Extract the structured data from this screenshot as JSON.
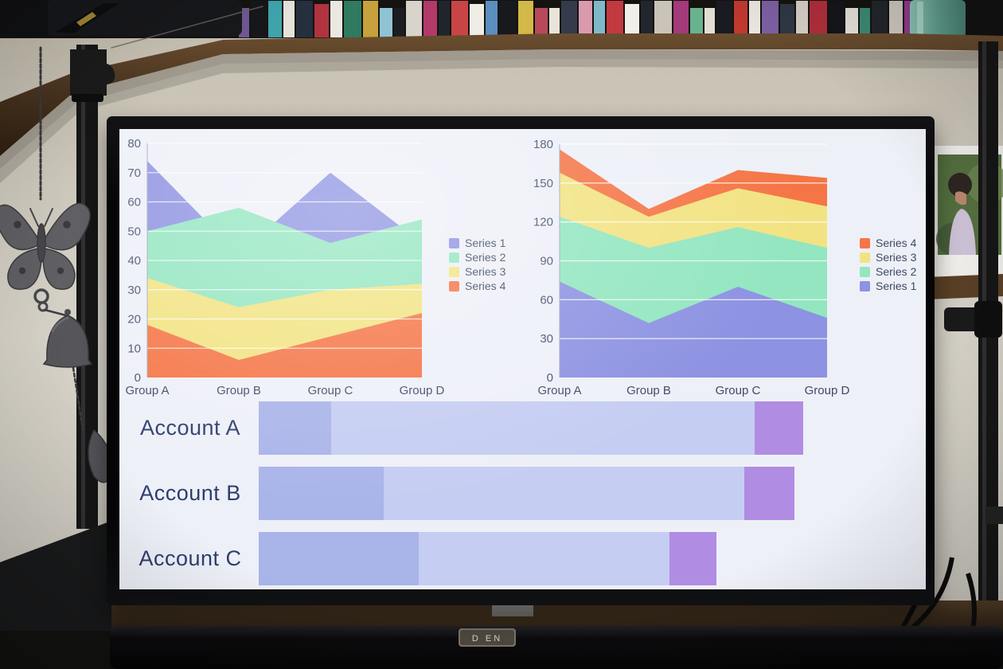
{
  "scene": {
    "wall_color": "#cfc8ba",
    "backdrop_dark": "#141310",
    "shelf": {
      "wood_color": "#4b3520",
      "edge_color": "#9b958a",
      "spines": [
        "#6f5794",
        "#15171b",
        "#3fa3ab",
        "#e6e3dc",
        "#262f3e",
        "#b03340",
        "#ebe8e2",
        "#2f7a60",
        "#c7a13b",
        "#8fc3d4",
        "#1b1d22",
        "#d8d4cc",
        "#b23a69",
        "#20242c",
        "#c94545",
        "#f0ede7",
        "#5a8fbf",
        "#18191d",
        "#d2b948",
        "#b8495a",
        "#e8e4da",
        "#343b4a",
        "#d99aae",
        "#7fb9c9",
        "#c23a3f",
        "#f2efe9",
        "#23262e",
        "#cac4b8",
        "#a43a7a",
        "#68b38e",
        "#e2ded4",
        "#191b20",
        "#c0392f",
        "#e9e6df",
        "#7c5fa2",
        "#2e3744",
        "#d4cfc6",
        "#ae2f3b",
        "#14161a",
        "#e5e2da",
        "#3d8a74",
        "#22252b",
        "#cdc8bf",
        "#913a8c",
        "#1d2026",
        "#dedacf"
      ]
    },
    "bag_color": "#17181b",
    "jar_color": "#6fae9f",
    "pipe_color": "#161617",
    "chime_metal_color": "#5f5f64",
    "tabletop_color": "#3a2b1d",
    "dark_corner_color": "#191a1b",
    "frame": {
      "matte_color": "#f2f0ec",
      "foliage_color": "#55703f",
      "hair_color": "#2e2622",
      "skin_color": "#b98a6e"
    },
    "soundbar": {
      "color": "#0b0b0d",
      "badge_color": "#7c7468",
      "badge_text": "D EN"
    }
  },
  "screen": {
    "background": "#eef0f8",
    "tick_color": "#44516d",
    "category_label_color": "#3e4a63",
    "account_label_color": "#2e3e6e",
    "gridline_color": "rgba(255,255,255,0.75)",
    "axis_color": "rgba(160,168,190,0.85)"
  },
  "chart_data": [
    {
      "id": "area-overlapping",
      "type": "area",
      "mode": "overlapping",
      "categories": [
        "Group A",
        "Group B",
        "Group C",
        "Group D"
      ],
      "series": [
        {
          "name": "Series 1",
          "color": "#8d92e2",
          "values": [
            74,
            42,
            70,
            46
          ]
        },
        {
          "name": "Series 2",
          "color": "#93e6c0",
          "values": [
            50,
            58,
            46,
            54
          ]
        },
        {
          "name": "Series 3",
          "color": "#f2e382",
          "values": [
            34,
            24,
            30,
            32
          ]
        },
        {
          "name": "Series 4",
          "color": "#f57546",
          "values": [
            18,
            6,
            14,
            22
          ]
        }
      ],
      "ylim": [
        0,
        80
      ],
      "yticks": [
        0,
        10,
        20,
        30,
        40,
        50,
        60,
        70,
        80
      ],
      "grid": true,
      "legend_position": "right",
      "legend_order": [
        "Series 1",
        "Series 2",
        "Series 3",
        "Series 4"
      ]
    },
    {
      "id": "area-stacked",
      "type": "area",
      "mode": "stacked",
      "categories": [
        "Group A",
        "Group B",
        "Group C",
        "Group D"
      ],
      "series": [
        {
          "name": "Series 1",
          "color": "#8d92e2",
          "values": [
            74,
            42,
            70,
            46
          ]
        },
        {
          "name": "Series 2",
          "color": "#93e6c0",
          "values": [
            50,
            58,
            46,
            54
          ]
        },
        {
          "name": "Series 3",
          "color": "#f2e382",
          "values": [
            34,
            24,
            30,
            32
          ]
        },
        {
          "name": "Series 4",
          "color": "#f57546",
          "values": [
            18,
            6,
            14,
            22
          ]
        }
      ],
      "ylim": [
        0,
        180
      ],
      "yticks": [
        0,
        30,
        60,
        90,
        120,
        150,
        180
      ],
      "grid": true,
      "legend_position": "right",
      "legend_order": [
        "Series 4",
        "Series 3",
        "Series 2",
        "Series 1"
      ]
    },
    {
      "id": "accounts-bar",
      "type": "bar",
      "orientation": "horizontal",
      "mode": "stacked",
      "categories": [
        "Account A",
        "Account B",
        "Account C"
      ],
      "series": [
        {
          "name": "segment-1",
          "color": "#a9b4e9",
          "values": [
            13.3,
            22.9,
            29.3
          ]
        },
        {
          "name": "segment-2",
          "color": "#c5cdf2",
          "values": [
            77.7,
            66.1,
            46.1
          ]
        },
        {
          "name": "segment-3",
          "color": "#b18ce3",
          "values": [
            8.9,
            9.2,
            8.6
          ]
        }
      ],
      "xlim": [
        0,
        100
      ],
      "axis_visible": false
    }
  ]
}
